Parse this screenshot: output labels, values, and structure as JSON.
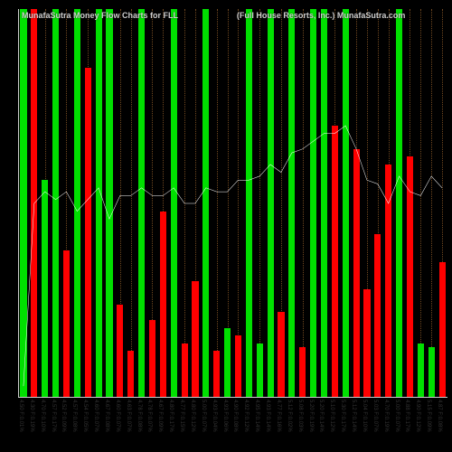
{
  "chart": {
    "type": "bar+line",
    "title_left": "MunafaSutra  Money Flow   Charts for FLL",
    "title_right": "(Full House   Resorts, Inc.) MunafaSutra.com",
    "background_color": "#000000",
    "title_color": "#cccccc",
    "axis_color": "#cccccc",
    "grid_color": "#704820",
    "green": "#00e000",
    "red": "#ff0000",
    "line_color": "#ffffff",
    "label_color": "#333333",
    "title_fontsize": 9,
    "label_fontsize": 6,
    "y_max": 100,
    "bars": [
      {
        "v": 100,
        "c": "green",
        "label": "4.50 F:0.01%"
      },
      {
        "v": 100,
        "c": "red",
        "label": "4.30 F:0.19%"
      },
      {
        "v": 56,
        "c": "green",
        "label": "4.70 F:0.10%"
      },
      {
        "v": 100,
        "c": "green",
        "label": "4.57 F:0.17%"
      },
      {
        "v": 38,
        "c": "red",
        "label": "4.52 F:0.09%"
      },
      {
        "v": 100,
        "c": "green",
        "label": "4.57 F:0.08%"
      },
      {
        "v": 85,
        "c": "red",
        "label": "4.54 F:0.05%"
      },
      {
        "v": 100,
        "c": "green",
        "label": "4.60 F:0.07%"
      },
      {
        "v": 100,
        "c": "green",
        "label": "4.67 F:0.08%"
      },
      {
        "v": 24,
        "c": "red",
        "label": "4.60 F:0.07%"
      },
      {
        "v": 12,
        "c": "red",
        "label": "4.63 F:0.07%"
      },
      {
        "v": 100,
        "c": "green",
        "label": "4.78 F:0.08%"
      },
      {
        "v": 20,
        "c": "red",
        "label": "4.78 F:0.07%"
      },
      {
        "v": 48,
        "c": "red",
        "label": "4.67 F:0.09%"
      },
      {
        "v": 100,
        "c": "green",
        "label": "4.80 F:0.17%"
      },
      {
        "v": 14,
        "c": "red",
        "label": "4.77 F:0.15%"
      },
      {
        "v": 30,
        "c": "red",
        "label": "4.80 F:0.12%"
      },
      {
        "v": 100,
        "c": "green",
        "label": "5.00 F:0.07%"
      },
      {
        "v": 12,
        "c": "red",
        "label": "4.93 F:0.04%"
      },
      {
        "v": 18,
        "c": "green",
        "label": "4.93 F:0.06%"
      },
      {
        "v": 16,
        "c": "red",
        "label": "4.90 F:0.08%"
      },
      {
        "v": 100,
        "c": "green",
        "label": "4.92 F:0.12%"
      },
      {
        "v": 14,
        "c": "green",
        "label": "4.95 F:0.14%"
      },
      {
        "v": 100,
        "c": "green",
        "label": "4.93 F:0.14%"
      },
      {
        "v": 22,
        "c": "red",
        "label": "4.77 F:0.16%"
      },
      {
        "v": 100,
        "c": "green",
        "label": "5.12 F:0.02%"
      },
      {
        "v": 13,
        "c": "red",
        "label": "5.08 F:0.03%"
      },
      {
        "v": 100,
        "c": "green",
        "label": "5.20 F:0.19%"
      },
      {
        "v": 100,
        "c": "green",
        "label": "5.20 F:0.14%"
      },
      {
        "v": 70,
        "c": "red",
        "label": "5.10 F:0.12%"
      },
      {
        "v": 100,
        "c": "green",
        "label": "5.30 F:0.17%"
      },
      {
        "v": 64,
        "c": "red",
        "label": "5.12 F:0.14%"
      },
      {
        "v": 28,
        "c": "red",
        "label": "5.04 F:0.10%"
      },
      {
        "v": 42,
        "c": "red",
        "label": "5.03 F:0.07%"
      },
      {
        "v": 60,
        "c": "red",
        "label": "4.70 F:0.19%"
      },
      {
        "v": 100,
        "c": "green",
        "label": "5.00 F:0.07%"
      },
      {
        "v": 62,
        "c": "red",
        "label": "4.88 F:0.17%"
      },
      {
        "v": 14,
        "c": "green",
        "label": "4.90 F:0.12%"
      },
      {
        "v": 13,
        "c": "green",
        "label": "5.15 F:0.09%"
      },
      {
        "v": 35,
        "c": "red",
        "label": "4.87 F:0.08%"
      }
    ],
    "line": [
      3,
      50,
      53,
      51,
      53,
      48,
      51,
      54,
      46,
      52,
      52,
      54,
      52,
      52,
      54,
      50,
      50,
      54,
      53,
      53,
      56,
      56,
      57,
      60,
      58,
      63,
      64,
      66,
      68,
      68,
      70,
      64,
      56,
      55,
      50,
      57,
      53,
      52,
      57,
      54
    ]
  }
}
